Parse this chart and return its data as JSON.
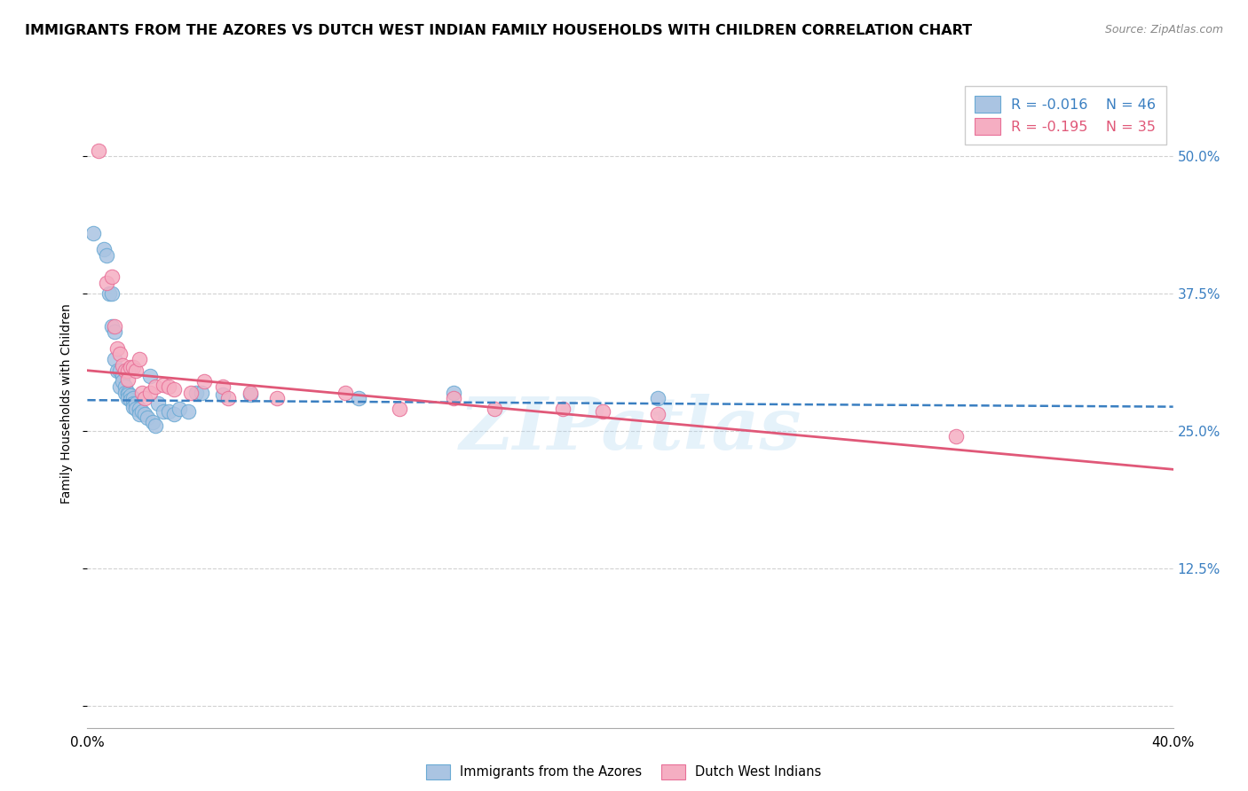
{
  "title": "IMMIGRANTS FROM THE AZORES VS DUTCH WEST INDIAN FAMILY HOUSEHOLDS WITH CHILDREN CORRELATION CHART",
  "source": "Source: ZipAtlas.com",
  "ylabel": "Family Households with Children",
  "ytick_labels": [
    "",
    "12.5%",
    "25.0%",
    "37.5%",
    "50.0%"
  ],
  "ytick_values": [
    0.0,
    0.125,
    0.25,
    0.375,
    0.5
  ],
  "xlim": [
    0.0,
    0.4
  ],
  "ylim": [
    -0.02,
    0.57
  ],
  "legend_r_blue": "-0.016",
  "legend_n_blue": "46",
  "legend_r_pink": "-0.195",
  "legend_n_pink": "35",
  "legend_label_blue": "Immigrants from the Azores",
  "legend_label_pink": "Dutch West Indians",
  "blue_color": "#aac4e2",
  "pink_color": "#f5aec2",
  "blue_scatter_edge": "#6aaad4",
  "pink_scatter_edge": "#e87098",
  "blue_line_color": "#3a7fc1",
  "pink_line_color": "#e05878",
  "watermark": "ZIPatlas",
  "blue_scatter_x": [
    0.002,
    0.006,
    0.007,
    0.008,
    0.009,
    0.009,
    0.01,
    0.01,
    0.011,
    0.012,
    0.012,
    0.013,
    0.013,
    0.014,
    0.014,
    0.015,
    0.015,
    0.015,
    0.016,
    0.016,
    0.017,
    0.017,
    0.017,
    0.018,
    0.018,
    0.019,
    0.019,
    0.02,
    0.021,
    0.022,
    0.023,
    0.024,
    0.025,
    0.026,
    0.028,
    0.03,
    0.032,
    0.034,
    0.037,
    0.04,
    0.042,
    0.05,
    0.06,
    0.1,
    0.135,
    0.21
  ],
  "blue_scatter_y": [
    0.43,
    0.415,
    0.41,
    0.375,
    0.375,
    0.345,
    0.34,
    0.315,
    0.305,
    0.305,
    0.29,
    0.3,
    0.295,
    0.29,
    0.285,
    0.285,
    0.283,
    0.28,
    0.282,
    0.278,
    0.28,
    0.275,
    0.272,
    0.275,
    0.27,
    0.27,
    0.265,
    0.268,
    0.265,
    0.262,
    0.3,
    0.258,
    0.255,
    0.275,
    0.268,
    0.268,
    0.265,
    0.27,
    0.268,
    0.285,
    0.285,
    0.283,
    0.283,
    0.28,
    0.285,
    0.28
  ],
  "pink_scatter_x": [
    0.004,
    0.007,
    0.009,
    0.01,
    0.011,
    0.012,
    0.013,
    0.014,
    0.015,
    0.015,
    0.016,
    0.017,
    0.018,
    0.019,
    0.02,
    0.021,
    0.023,
    0.025,
    0.028,
    0.03,
    0.032,
    0.038,
    0.043,
    0.05,
    0.052,
    0.06,
    0.07,
    0.095,
    0.115,
    0.135,
    0.15,
    0.175,
    0.19,
    0.21,
    0.32
  ],
  "pink_scatter_y": [
    0.505,
    0.385,
    0.39,
    0.345,
    0.325,
    0.32,
    0.31,
    0.305,
    0.305,
    0.297,
    0.308,
    0.308,
    0.305,
    0.315,
    0.285,
    0.28,
    0.285,
    0.29,
    0.292,
    0.29,
    0.288,
    0.285,
    0.295,
    0.29,
    0.28,
    0.285,
    0.28,
    0.285,
    0.27,
    0.28,
    0.27,
    0.27,
    0.268,
    0.265,
    0.245
  ],
  "blue_trend_x": [
    0.0,
    0.4
  ],
  "blue_trend_y": [
    0.278,
    0.272
  ],
  "pink_trend_x": [
    0.0,
    0.4
  ],
  "pink_trend_y": [
    0.305,
    0.215
  ],
  "grid_color": "#cccccc",
  "background_color": "#ffffff",
  "title_fontsize": 11.5,
  "axis_label_fontsize": 10,
  "tick_fontsize": 11,
  "legend_fontsize": 11.5
}
